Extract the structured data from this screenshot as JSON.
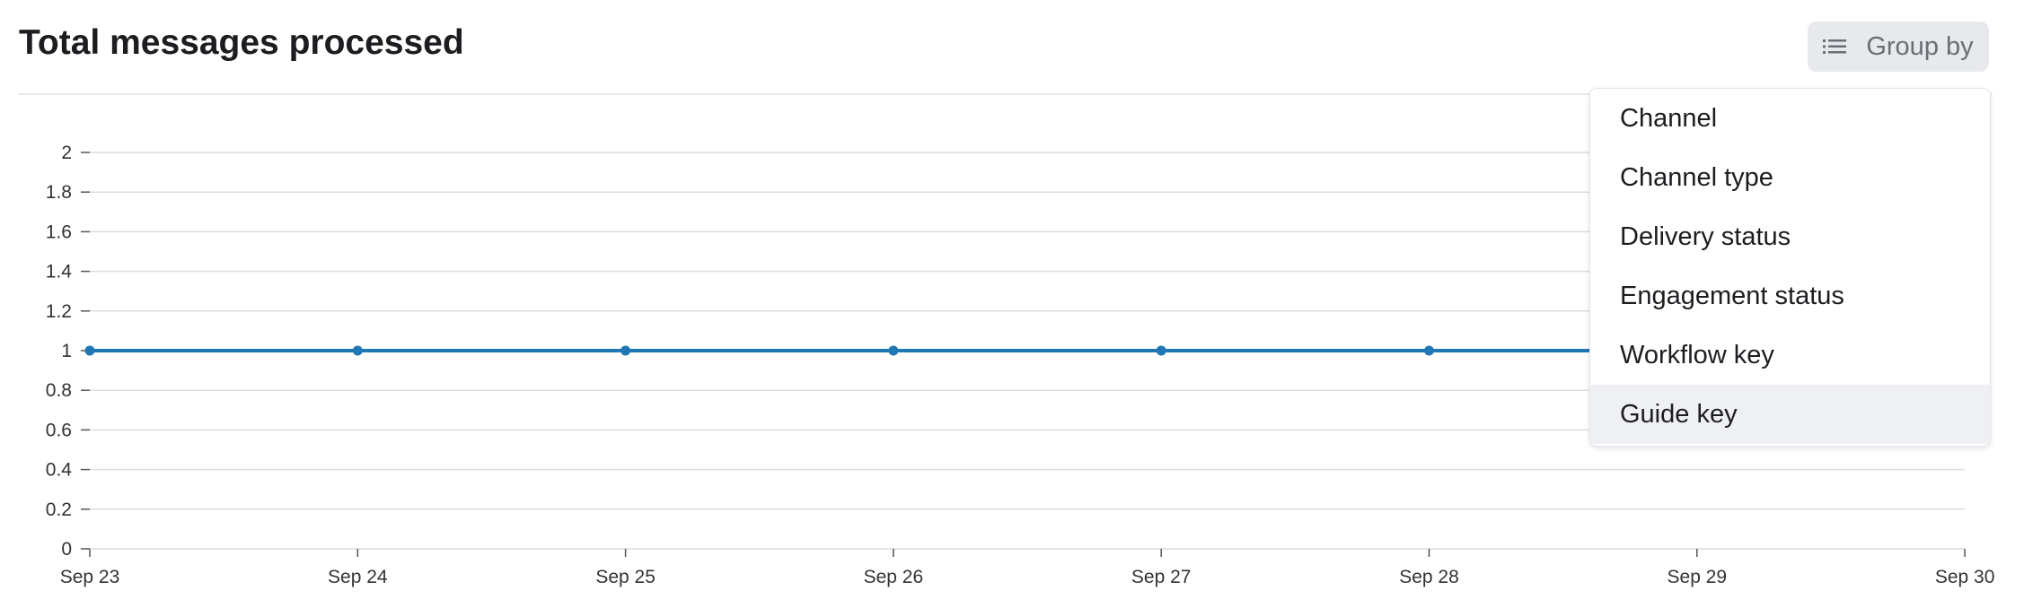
{
  "header": {
    "title": "Total messages processed",
    "group_by_label": "Group by",
    "group_by_icon": "list-icon"
  },
  "group_by_menu": {
    "items": [
      {
        "label": "Channel",
        "highlighted": false
      },
      {
        "label": "Channel type",
        "highlighted": false
      },
      {
        "label": "Delivery status",
        "highlighted": false
      },
      {
        "label": "Engagement status",
        "highlighted": false
      },
      {
        "label": "Workflow key",
        "highlighted": false
      },
      {
        "label": "Guide key",
        "highlighted": true
      }
    ]
  },
  "chart_data": {
    "type": "line",
    "title": "Total messages processed",
    "x": [
      "Sep 23",
      "Sep 24",
      "Sep 25",
      "Sep 26",
      "Sep 27",
      "Sep 28",
      "Sep 29"
    ],
    "x_ticks": [
      "Sep 23",
      "Sep 24",
      "Sep 25",
      "Sep 26",
      "Sep 27",
      "Sep 28",
      "Sep 29",
      "Sep 30"
    ],
    "series": [
      {
        "values": [
          1,
          1,
          1,
          1,
          1,
          1,
          1
        ],
        "color": "#1f77b4"
      }
    ],
    "y_ticks": [
      "0",
      "0.2",
      "0.4",
      "0.6",
      "0.8",
      "1",
      "1.2",
      "1.4",
      "1.6",
      "1.8",
      "2"
    ],
    "ylim": [
      0,
      2
    ],
    "grid": true,
    "colors": {
      "line": "#1f77b4",
      "grid": "#dcdcdc",
      "axis_text": "#333333"
    }
  }
}
